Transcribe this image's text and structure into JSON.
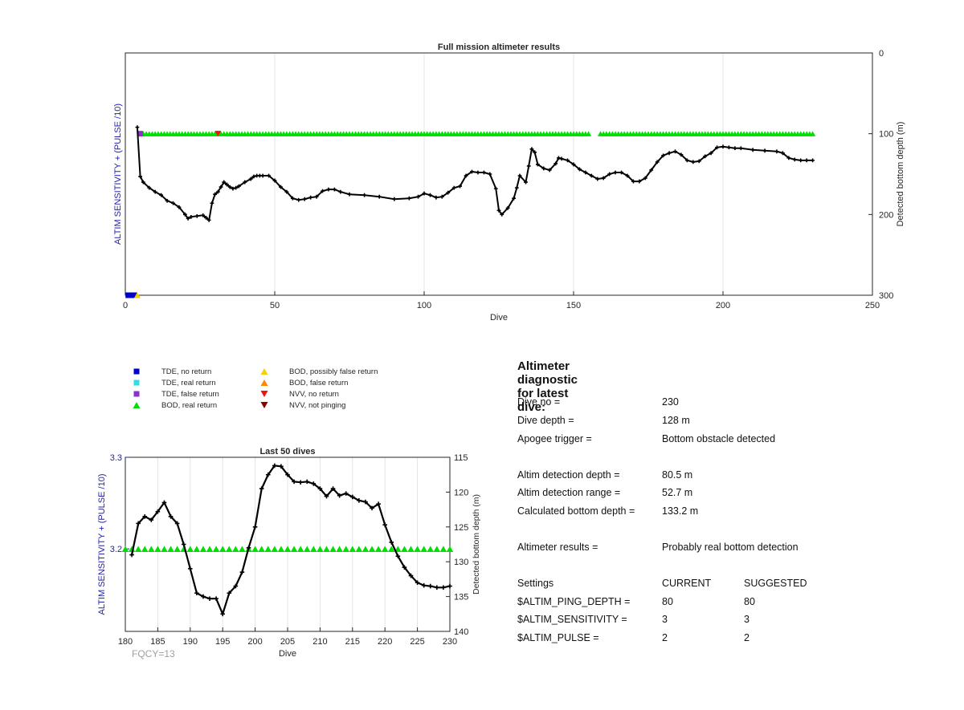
{
  "chart_data": [
    {
      "type": "line",
      "title": "Full mission altimeter results",
      "xlabel": "Dive",
      "ylabel_left": "ALTIM SENSITIVITY + (PULSE /10)",
      "ylabel_right": "Detected bottom depth (m)",
      "xlim": [
        0,
        250
      ],
      "ylim_right": [
        300,
        0
      ],
      "x_ticks": [
        "0",
        "50",
        "100",
        "150",
        "200",
        "250"
      ],
      "y_ticks_right": [
        "0",
        "100",
        "200",
        "300"
      ],
      "grid": "vertical",
      "series": [
        {
          "marker": "line",
          "x": [
            4,
            5,
            6,
            8,
            10,
            12,
            14,
            16,
            18,
            20,
            21,
            22,
            24,
            26,
            27,
            28,
            29,
            30,
            31,
            32,
            33,
            34,
            35,
            36,
            37,
            38,
            40,
            42,
            43,
            44,
            45,
            46,
            48,
            50,
            52,
            54,
            56,
            58,
            60,
            62,
            64,
            66,
            68,
            70,
            72,
            75,
            80,
            85,
            90,
            95,
            98,
            100,
            102,
            104,
            106,
            108,
            110,
            112,
            114,
            116,
            118,
            120,
            122,
            124,
            125,
            126,
            128,
            130,
            131,
            132,
            134,
            135,
            136,
            137,
            138,
            140,
            142,
            144,
            145,
            146,
            148,
            150,
            152,
            154,
            156,
            158,
            160,
            162,
            164,
            166,
            168,
            170,
            172,
            174,
            176,
            178,
            180,
            182,
            184,
            186,
            188,
            190,
            192,
            194,
            196,
            198,
            200,
            202,
            204,
            206,
            210,
            214,
            218,
            220,
            222,
            224,
            226,
            228,
            230
          ],
          "y": [
            92,
            153,
            160,
            167,
            172,
            176,
            183,
            186,
            191,
            200,
            205,
            203,
            202,
            201,
            204,
            207,
            186,
            175,
            172,
            166,
            160,
            163,
            166,
            168,
            167,
            165,
            160,
            156,
            153,
            152,
            152,
            152,
            152,
            158,
            166,
            172,
            180,
            182,
            181,
            179,
            178,
            171,
            169,
            169,
            172,
            175,
            176,
            178,
            181,
            180,
            178,
            174,
            176,
            179,
            178,
            173,
            167,
            165,
            152,
            147,
            148,
            148,
            150,
            168,
            195,
            200,
            192,
            180,
            167,
            152,
            160,
            140,
            119,
            123,
            138,
            143,
            145,
            137,
            130,
            131,
            133,
            138,
            144,
            148,
            152,
            156,
            155,
            150,
            148,
            148,
            152,
            159,
            159,
            155,
            145,
            135,
            127,
            124,
            122,
            126,
            133,
            135,
            134,
            128,
            124,
            117,
            116,
            117,
            118,
            118,
            120,
            121,
            122,
            124,
            130,
            132,
            133,
            133,
            133
          ]
        },
        {
          "name": "BOD, real return",
          "color": "#00e000",
          "marker": "triangle-up",
          "x_ranges": [
            [
              5,
              65
            ],
            [
              66,
              80
            ],
            [
              81,
              155
            ],
            [
              159,
              230
            ]
          ],
          "y": 100
        }
      ],
      "special_markers": [
        {
          "label": "TDE, no return",
          "x": [
            1,
            2,
            3
          ],
          "y": 300
        },
        {
          "label": "BOD, possibly false return",
          "x": [
            4
          ],
          "y": 300
        },
        {
          "label": "TDE, false return",
          "x": [
            5
          ],
          "y": 100
        },
        {
          "label": "NVV, no return",
          "x": [
            31
          ],
          "y": 100
        }
      ]
    },
    {
      "type": "line",
      "title": "Last 50 dives",
      "xlabel": "Dive",
      "ylabel_left": "ALTIM SENSITIVITY + (PULSE /10)",
      "ylabel_right": "Detected bottom depth (m)",
      "xlim": [
        180,
        230
      ],
      "ylim_right": [
        140,
        115
      ],
      "ylim_left": [
        3.11,
        3.3
      ],
      "x_ticks": [
        "180",
        "185",
        "190",
        "195",
        "200",
        "205",
        "210",
        "215",
        "220",
        "225",
        "230"
      ],
      "y_ticks_left": [
        "3.2",
        "3.3"
      ],
      "y_ticks_right": [
        "115",
        "120",
        "125",
        "130",
        "135",
        "140"
      ],
      "grid": "vertical",
      "series": [
        {
          "marker": "line",
          "x": [
            181,
            182,
            183,
            184,
            185,
            186,
            187,
            188,
            189,
            190,
            191,
            192,
            193,
            194,
            195,
            196,
            197,
            198,
            199,
            200,
            201,
            202,
            203,
            204,
            205,
            206,
            207,
            208,
            209,
            210,
            211,
            212,
            213,
            214,
            215,
            216,
            217,
            218,
            219,
            220,
            221,
            222,
            223,
            224,
            225,
            226,
            227,
            228,
            229,
            230
          ],
          "y": [
            129,
            124.5,
            123.5,
            124,
            122.8,
            121.5,
            123.5,
            124.5,
            127.5,
            131,
            134.5,
            135,
            135.3,
            135.3,
            137.5,
            134.5,
            133.5,
            131.5,
            128,
            125,
            119.5,
            117.5,
            116.2,
            116.3,
            117.5,
            118.5,
            118.6,
            118.5,
            118.8,
            119.5,
            120.6,
            119.5,
            120.5,
            120.2,
            120.7,
            121.2,
            121.4,
            122.3,
            121.7,
            124.7,
            127.2,
            129.2,
            130.8,
            132.0,
            133.0,
            133.4,
            133.5,
            133.7,
            133.7,
            133.5
          ]
        },
        {
          "name": "BOD, real return",
          "color": "#00e000",
          "marker": "triangle-up",
          "x_range": [
            181,
            230
          ],
          "y_left": 3.2
        }
      ],
      "footer_label": "FQCY=13"
    }
  ],
  "legend": {
    "items": [
      {
        "label": "TDE, no return",
        "color": "#0000cc",
        "marker": "square"
      },
      {
        "label": "TDE, real return",
        "color": "#33dddd",
        "marker": "square"
      },
      {
        "label": "TDE, false return",
        "color": "#8833cc",
        "marker": "square"
      },
      {
        "label": "BOD, real return",
        "color": "#00e000",
        "marker": "triangle-up"
      },
      {
        "label": "BOD, possibly false return",
        "color": "#f5d000",
        "marker": "triangle-up"
      },
      {
        "label": "BOD, false return",
        "color": "#ff8800",
        "marker": "triangle-up"
      },
      {
        "label": "NVV, no return",
        "color": "#ee1111",
        "marker": "triangle-down"
      },
      {
        "label": "NVV, not pinging",
        "color": "#8b0000",
        "marker": "triangle-down"
      }
    ]
  },
  "diagnostic": {
    "title": "Altimeter diagnostic for latest dive:",
    "rows": [
      {
        "label": "Dive no =",
        "value": "230",
        "value2": ""
      },
      {
        "label": "Dive depth =",
        "value": "128 m",
        "value2": ""
      },
      {
        "label": "Apogee trigger =",
        "value": "Bottom obstacle detected",
        "value2": ""
      },
      {
        "label": "Altim detection depth =",
        "value": "80.5 m",
        "value2": ""
      },
      {
        "label": "Altim detection range =",
        "value": "52.7 m",
        "value2": ""
      },
      {
        "label": "Calculated bottom depth =",
        "value": "133.2 m",
        "value2": ""
      },
      {
        "label": "Altimeter results =",
        "value": "Probably real bottom detection",
        "value2": ""
      },
      {
        "label": "Settings",
        "value": "CURRENT",
        "value2": "SUGGESTED"
      },
      {
        "label": "$ALTIM_PING_DEPTH =",
        "value": "80",
        "value2": "80"
      },
      {
        "label": "$ALTIM_SENSITIVITY =",
        "value": "3",
        "value2": "3"
      },
      {
        "label": "$ALTIM_PULSE =",
        "value": "2",
        "value2": "2"
      }
    ]
  }
}
